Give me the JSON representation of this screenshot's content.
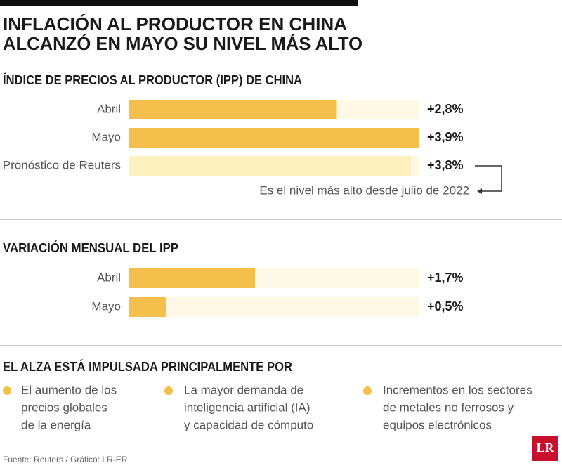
{
  "title": [
    "INFLACIÓN AL PRODUCTOR EN CHINA",
    "ALCANZÓ EN MAYO SU NIVEL MÁS ALTO"
  ],
  "chart_data": [
    {
      "type": "bar",
      "title": "ÍNDICE DE PRECIOS AL PRODUCTOR (IPP) DE CHINA",
      "categories": [
        "Abril",
        "Mayo",
        "Pronóstico de Reuters"
      ],
      "values": [
        2.8,
        3.9,
        3.8
      ],
      "value_labels": [
        "+2,8%",
        "+3,9%",
        "+3,8%"
      ],
      "colors": [
        "#f4c04b",
        "#f4c04b",
        "#fdf0bf"
      ],
      "annotation": "Es el nivel más alto desde julio de 2022"
    },
    {
      "type": "bar",
      "title": "VARIACIÓN MENSUAL DEL IPP",
      "categories": [
        "Abril",
        "Mayo"
      ],
      "values": [
        1.7,
        0.5
      ],
      "value_labels": [
        "+1,7%",
        "+0,5%"
      ],
      "colors": [
        "#f4c04b",
        "#f4c04b"
      ]
    }
  ],
  "drivers": {
    "title": "EL ALZA ESTÁ IMPULSADA PRINCIPALMENTE POR",
    "items": [
      [
        "El aumento de los",
        "precios globales",
        "de la energía"
      ],
      [
        "La mayor demanda de",
        "inteligencia artificial (IA)",
        "y capacidad de cómputo"
      ],
      [
        "Incrementos en los sectores",
        "de metales no ferrosos y",
        "equipos electrónicos"
      ]
    ]
  },
  "source": "Fuente: Reuters / Gráfico: LR-ER",
  "logo": "LR"
}
